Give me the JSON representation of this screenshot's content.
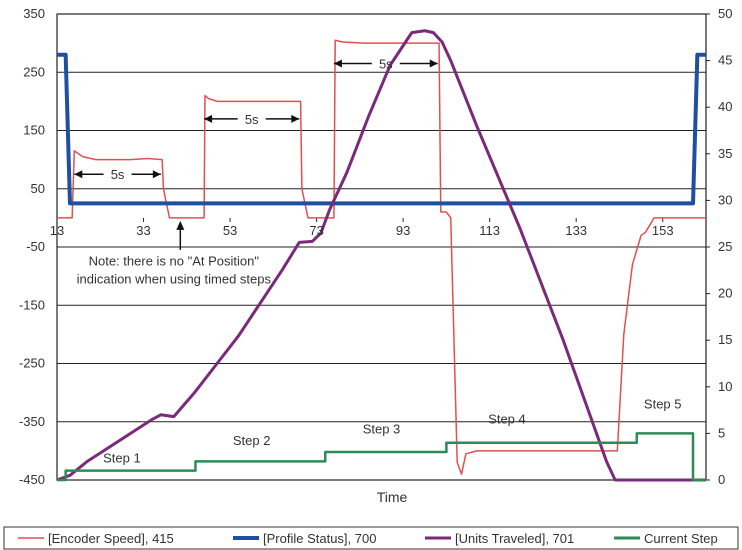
{
  "chart_data": {
    "type": "line",
    "title": "",
    "xlabel": "Time",
    "ylabel_left": "",
    "ylabel_right": "",
    "xlim": [
      13,
      163
    ],
    "ylim_left": [
      -450,
      350
    ],
    "ylim_right": [
      0,
      50
    ],
    "x_ticks": [
      13,
      33,
      53,
      73,
      93,
      113,
      133,
      153
    ],
    "y_left_ticks": [
      350,
      250,
      150,
      50,
      -50,
      -150,
      -250,
      -350,
      -450
    ],
    "y_right_ticks": [
      50,
      45,
      40,
      35,
      30,
      25,
      20,
      15,
      10,
      5,
      0
    ],
    "grid": true,
    "legend_position": "bottom",
    "series": [
      {
        "name": "[Encoder Speed], 415",
        "axis": "left",
        "color": "#e05050",
        "x": [
          13,
          16.5,
          17,
          19,
          22,
          26,
          30,
          34,
          37.3,
          37.6,
          39,
          40,
          41,
          43,
          46,
          47,
          47.2,
          48,
          50,
          55,
          60,
          65,
          69.3,
          69.6,
          71,
          72,
          73,
          75,
          77,
          77.3,
          79,
          84,
          90,
          96,
          101.3,
          101.7,
          103,
          104,
          105.5,
          106.5,
          107.5,
          110,
          120,
          130,
          140,
          142.5,
          144,
          146,
          148,
          149,
          151,
          155,
          160,
          163
        ],
        "y": [
          0,
          0,
          115,
          105,
          100,
          100,
          100,
          102,
          100,
          50,
          0,
          0,
          0,
          0,
          0,
          0,
          210,
          205,
          200,
          200,
          200,
          200,
          200,
          50,
          0,
          0,
          0,
          0,
          0,
          305,
          302,
          300,
          300,
          300,
          300,
          10,
          10,
          0,
          -420,
          -440,
          -405,
          -400,
          -400,
          -400,
          -400,
          -400,
          -200,
          -80,
          -30,
          -25,
          0,
          0,
          0,
          0
        ]
      },
      {
        "name": "[Profile Status], 700",
        "axis": "left",
        "color": "#1f4fa0",
        "x": [
          13,
          15,
          16,
          30,
          60,
          90,
          120,
          150,
          160,
          161,
          163
        ],
        "y": [
          280,
          280,
          25,
          25,
          25,
          25,
          25,
          25,
          25,
          280,
          280
        ]
      },
      {
        "name": "[Units Traveled], 701",
        "axis": "right",
        "color": "#7a2a7a",
        "x": [
          13,
          16,
          20,
          25,
          30,
          35,
          37,
          40,
          45,
          50,
          55,
          60,
          65,
          69,
          72,
          74,
          76,
          80,
          85,
          90,
          95,
          98,
          100,
          102,
          104,
          110,
          120,
          130,
          140,
          142,
          145,
          150,
          155,
          160,
          163
        ],
        "y": [
          0,
          0.5,
          2,
          3.5,
          5,
          6.5,
          7,
          6.8,
          9.5,
          12.5,
          15.5,
          19,
          22.5,
          25.5,
          25.6,
          26.5,
          29,
          33,
          39,
          44.5,
          48,
          48.2,
          48,
          47,
          45,
          38,
          27,
          15,
          2,
          0,
          0,
          0,
          0,
          0,
          0
        ]
      },
      {
        "name": "Current Step",
        "axis": "right",
        "color": "#2e8b57",
        "step": true,
        "x": [
          13,
          15,
          45,
          75,
          103,
          147,
          151,
          160,
          163
        ],
        "y": [
          0,
          1,
          2,
          3,
          4,
          5,
          5,
          0,
          0
        ]
      }
    ],
    "annotations": [
      {
        "text": "5s",
        "x1": 17,
        "x2": 37,
        "y": 75
      },
      {
        "text": "5s",
        "x1": 47,
        "x2": 69,
        "y": 170
      },
      {
        "text": "5s",
        "x1": 77,
        "x2": 101,
        "y": 265
      },
      {
        "text": "Note: there is no \"At Position\"",
        "x": 40,
        "y": -82
      },
      {
        "text": "indication when using timed steps",
        "x": 40,
        "y": -113
      },
      {
        "text": "Step 1",
        "x": 28,
        "y": -420
      },
      {
        "text": "Step 2",
        "x": 58,
        "y": -390
      },
      {
        "text": "Step 3",
        "x": 88,
        "y": -370
      },
      {
        "text": "Step 4",
        "x": 117,
        "y": -353
      },
      {
        "text": "Step 5",
        "x": 153,
        "y": -327
      }
    ]
  }
}
